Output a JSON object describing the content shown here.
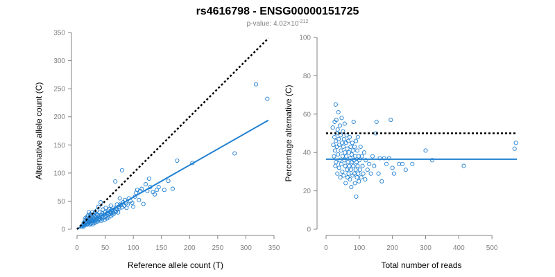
{
  "figure": {
    "title": "rs4616798 - ENSG00000151725",
    "subtitle_prefix": "p-value: 4.02×10",
    "subtitle_exponent": "-212"
  },
  "colors": {
    "points": "#1f7fd1",
    "fit": "#1f7fd1",
    "reference": "#000000",
    "axis": "#808080"
  },
  "chart_data": [
    {
      "type": "scatter",
      "xlabel": "Reference allele count (T)",
      "ylabel": "Alternative allele count (C)",
      "xlim": [
        0,
        350
      ],
      "ylim": [
        0,
        350
      ],
      "xticks": [
        0,
        50,
        100,
        150,
        200,
        250,
        300,
        350
      ],
      "yticks": [
        0,
        50,
        100,
        150,
        200,
        250,
        300,
        350
      ],
      "grid": false,
      "series": [
        {
          "values": [
            [
              8,
              4
            ],
            [
              10,
              6
            ],
            [
              11,
              8
            ],
            [
              12,
              5
            ],
            [
              12,
              12
            ],
            [
              13,
              9
            ],
            [
              14,
              7
            ],
            [
              14,
              16
            ],
            [
              15,
              11
            ],
            [
              15,
              20
            ],
            [
              16,
              13
            ],
            [
              17,
              8
            ],
            [
              17,
              18
            ],
            [
              18,
              12
            ],
            [
              18,
              22
            ],
            [
              19,
              9
            ],
            [
              19,
              15
            ],
            [
              20,
              10
            ],
            [
              20,
              25
            ],
            [
              21,
              14
            ],
            [
              21,
              30
            ],
            [
              22,
              12
            ],
            [
              22,
              18
            ],
            [
              23,
              8
            ],
            [
              23,
              22
            ],
            [
              24,
              15
            ],
            [
              24,
              27
            ],
            [
              25,
              10
            ],
            [
              25,
              19
            ],
            [
              26,
              12
            ],
            [
              26,
              24
            ],
            [
              27,
              16
            ],
            [
              27,
              30
            ],
            [
              28,
              9
            ],
            [
              28,
              21
            ],
            [
              29,
              14
            ],
            [
              30,
              18
            ],
            [
              30,
              26
            ],
            [
              31,
              11
            ],
            [
              31,
              23
            ],
            [
              32,
              15
            ],
            [
              32,
              30
            ],
            [
              33,
              19
            ],
            [
              34,
              13
            ],
            [
              34,
              27
            ],
            [
              35,
              17
            ],
            [
              35,
              33
            ],
            [
              36,
              20
            ],
            [
              37,
              14
            ],
            [
              37,
              25
            ],
            [
              38,
              18
            ],
            [
              38,
              40
            ],
            [
              39,
              22
            ],
            [
              40,
              16
            ],
            [
              40,
              30
            ],
            [
              41,
              19
            ],
            [
              42,
              25
            ],
            [
              42,
              48
            ],
            [
              43,
              15
            ],
            [
              44,
              22
            ],
            [
              45,
              28
            ],
            [
              45,
              18
            ],
            [
              46,
              35
            ],
            [
              47,
              21
            ],
            [
              48,
              26
            ],
            [
              49,
              17
            ],
            [
              50,
              30
            ],
            [
              50,
              22
            ],
            [
              51,
              38
            ],
            [
              52,
              24
            ],
            [
              53,
              19
            ],
            [
              54,
              29
            ],
            [
              55,
              33
            ],
            [
              55,
              26
            ],
            [
              56,
              21
            ],
            [
              57,
              36
            ],
            [
              58,
              27
            ],
            [
              59,
              31
            ],
            [
              60,
              23
            ],
            [
              60,
              42
            ],
            [
              61,
              29
            ],
            [
              62,
              34
            ],
            [
              63,
              26
            ],
            [
              64,
              30
            ],
            [
              65,
              38
            ],
            [
              66,
              28
            ],
            [
              67,
              33
            ],
            [
              68,
              85
            ],
            [
              69,
              31
            ],
            [
              70,
              36
            ],
            [
              71,
              44
            ],
            [
              72,
              35
            ],
            [
              73,
              30
            ],
            [
              74,
              40
            ],
            [
              75,
              37
            ],
            [
              76,
              55
            ],
            [
              77,
              45
            ],
            [
              78,
              43
            ],
            [
              80,
              39
            ],
            [
              80,
              105
            ],
            [
              82,
              48
            ],
            [
              84,
              42
            ],
            [
              85,
              52
            ],
            [
              87,
              46
            ],
            [
              88,
              38
            ],
            [
              90,
              44
            ],
            [
              92,
              55
            ],
            [
              95,
              50
            ],
            [
              98,
              47
            ],
            [
              100,
              40
            ],
            [
              103,
              58
            ],
            [
              105,
              65
            ],
            [
              107,
              70
            ],
            [
              110,
              52
            ],
            [
              112,
              68
            ],
            [
              115,
              72
            ],
            [
              118,
              45
            ],
            [
              122,
              80
            ],
            [
              125,
              68
            ],
            [
              128,
              90
            ],
            [
              130,
              75
            ],
            [
              135,
              66
            ],
            [
              138,
              62
            ],
            [
              142,
              70
            ],
            [
              145,
              75
            ],
            [
              155,
              70
            ],
            [
              162,
              86
            ],
            [
              170,
              72
            ],
            [
              178,
              122
            ],
            [
              205,
              118
            ],
            [
              280,
              135
            ],
            [
              318,
              258
            ],
            [
              338,
              232
            ]
          ]
        }
      ],
      "fit_line": {
        "from": [
          0,
          0
        ],
        "to": [
          340,
          194
        ]
      },
      "reference_line": {
        "from": [
          0,
          0
        ],
        "to": [
          340,
          340
        ]
      }
    },
    {
      "type": "scatter",
      "xlabel": "Total number of reads",
      "ylabel": "Percentage alternative (C)",
      "xlim": [
        0,
        575
      ],
      "ylim": [
        0,
        100
      ],
      "xticks": [
        0,
        100,
        200,
        300,
        400,
        500
      ],
      "yticks": [
        0,
        20,
        40,
        60,
        80,
        100
      ],
      "grid": false,
      "series": [
        {
          "values": [
            [
              20,
              53
            ],
            [
              22,
              44
            ],
            [
              24,
              38
            ],
            [
              25,
              48
            ],
            [
              26,
              56
            ],
            [
              27,
              41
            ],
            [
              28,
              33
            ],
            [
              29,
              65
            ],
            [
              30,
              46
            ],
            [
              30,
              35
            ],
            [
              31,
              57
            ],
            [
              32,
              50
            ],
            [
              33,
              43
            ],
            [
              34,
              29
            ],
            [
              35,
              52
            ],
            [
              36,
              39
            ],
            [
              37,
              61
            ],
            [
              38,
              47
            ],
            [
              39,
              32
            ],
            [
              40,
              44
            ],
            [
              41,
              36
            ],
            [
              42,
              54
            ],
            [
              43,
              27
            ],
            [
              44,
              49
            ],
            [
              45,
              41
            ],
            [
              46,
              34
            ],
            [
              47,
              58
            ],
            [
              48,
              45
            ],
            [
              49,
              30
            ],
            [
              50,
              38
            ],
            [
              51,
              51
            ],
            [
              52,
              43
            ],
            [
              53,
              28
            ],
            [
              54,
              47
            ],
            [
              55,
              36
            ],
            [
              56,
              55
            ],
            [
              57,
              40
            ],
            [
              58,
              33
            ],
            [
              59,
              24
            ],
            [
              60,
              45
            ],
            [
              61,
              38
            ],
            [
              62,
              49
            ],
            [
              63,
              31
            ],
            [
              64,
              42
            ],
            [
              65,
              27
            ],
            [
              66,
              35
            ],
            [
              67,
              46
            ],
            [
              68,
              29
            ],
            [
              69,
              40
            ],
            [
              70,
              33
            ],
            [
              71,
              48
            ],
            [
              72,
              26
            ],
            [
              73,
              37
            ],
            [
              74,
              43
            ],
            [
              75,
              31
            ],
            [
              76,
              22
            ],
            [
              77,
              39
            ],
            [
              78,
              35
            ],
            [
              79,
              45
            ],
            [
              80,
              28
            ],
            [
              81,
              41
            ],
            [
              82,
              33
            ],
            [
              83,
              56
            ],
            [
              84,
              36
            ],
            [
              85,
              29
            ],
            [
              86,
              43
            ],
            [
              87,
              24
            ],
            [
              88,
              38
            ],
            [
              89,
              31
            ],
            [
              90,
              46
            ],
            [
              91,
              17
            ],
            [
              92,
              35
            ],
            [
              93,
              27
            ],
            [
              94,
              41
            ],
            [
              95,
              33
            ],
            [
              96,
              48
            ],
            [
              97,
              29
            ],
            [
              98,
              38
            ],
            [
              99,
              25
            ],
            [
              100,
              36
            ],
            [
              102,
              31
            ],
            [
              104,
              43
            ],
            [
              106,
              27
            ],
            [
              108,
              38
            ],
            [
              110,
              33
            ],
            [
              112,
              29
            ],
            [
              115,
              40
            ],
            [
              118,
              26
            ],
            [
              120,
              36
            ],
            [
              125,
              31
            ],
            [
              130,
              34
            ],
            [
              135,
              29
            ],
            [
              140,
              38
            ],
            [
              145,
              33
            ],
            [
              150,
              50
            ],
            [
              152,
              56
            ],
            [
              158,
              29
            ],
            [
              162,
              37
            ],
            [
              168,
              25
            ],
            [
              175,
              37
            ],
            [
              182,
              34
            ],
            [
              190,
              37
            ],
            [
              195,
              57
            ],
            [
              200,
              32
            ],
            [
              205,
              29
            ],
            [
              220,
              34
            ],
            [
              230,
              34
            ],
            [
              240,
              31
            ],
            [
              260,
              34
            ],
            [
              300,
              41
            ],
            [
              320,
              36
            ],
            [
              415,
              33
            ],
            [
              568,
              42
            ],
            [
              572,
              45
            ]
          ]
        }
      ],
      "fit_line": {
        "from": [
          0,
          36.5
        ],
        "to": [
          575,
          36.5
        ]
      },
      "reference_line": {
        "from": [
          0,
          50
        ],
        "to": [
          575,
          50
        ]
      }
    }
  ]
}
